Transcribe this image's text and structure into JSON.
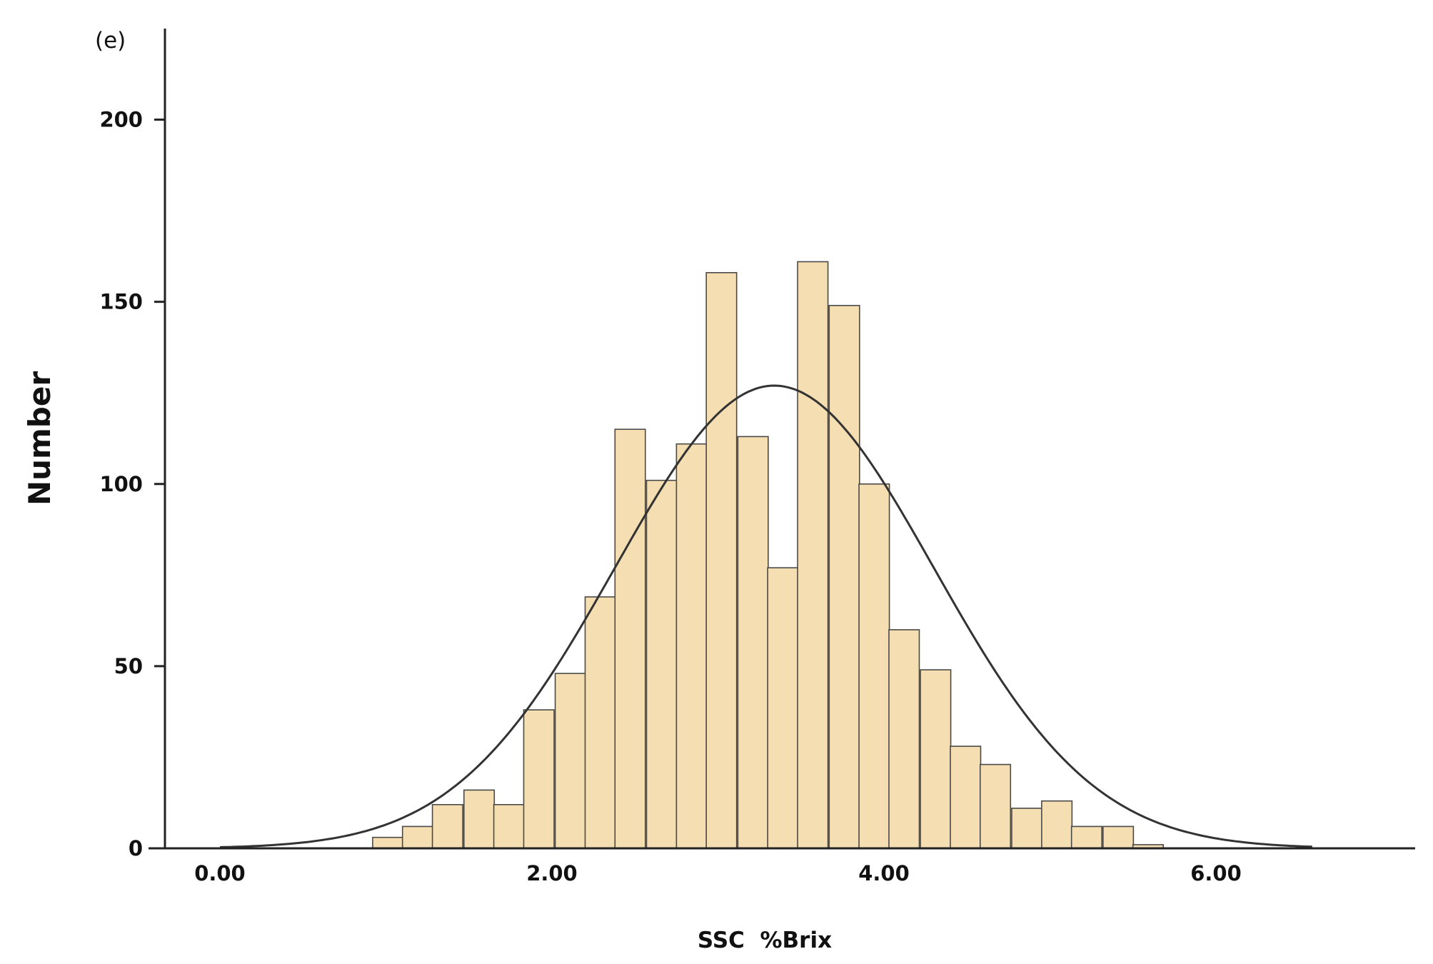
{
  "chart_data": {
    "type": "bar",
    "panel_label": "(e)",
    "xlabel": "SSC  %Brix",
    "ylabel": "Number",
    "xlim": [
      -0.43,
      7.2
    ],
    "ylim": [
      0,
      225
    ],
    "x_ticks": [
      {
        "value": 0,
        "label": "0.00"
      },
      {
        "value": 2,
        "label": "2.00"
      },
      {
        "value": 4,
        "label": "4.00"
      },
      {
        "value": 6,
        "label": "6.00"
      }
    ],
    "y_ticks": [
      {
        "value": 0,
        "label": "0"
      },
      {
        "value": 50,
        "label": "50"
      },
      {
        "value": 100,
        "label": "100"
      },
      {
        "value": 150,
        "label": "150"
      },
      {
        "value": 200,
        "label": "200"
      }
    ],
    "bin_width": 0.183,
    "bin_starts": [
      0.92,
      1.1,
      1.28,
      1.47,
      1.65,
      1.83,
      2.02,
      2.2,
      2.38,
      2.57,
      2.75,
      2.93,
      3.12,
      3.3,
      3.48,
      3.67,
      3.85,
      4.03,
      4.22,
      4.4,
      4.58,
      4.77,
      4.95,
      5.13,
      5.32,
      5.5
    ],
    "values": [
      3,
      6,
      12,
      16,
      12,
      38,
      48,
      69,
      115,
      101,
      111,
      158,
      113,
      77,
      161,
      149,
      100,
      60,
      49,
      28,
      23,
      11,
      13,
      6,
      6,
      1
    ],
    "normal_curve": {
      "mean": 3.34,
      "sd": 0.96,
      "peak": 127,
      "x_range": [
        0.0,
        6.58
      ]
    },
    "colors": {
      "bar_fill": "#F5DEB1",
      "bar_stroke": "#4a4a4a",
      "curve": "#333333",
      "axis": "#222222"
    },
    "grid": false,
    "legend": "none"
  }
}
